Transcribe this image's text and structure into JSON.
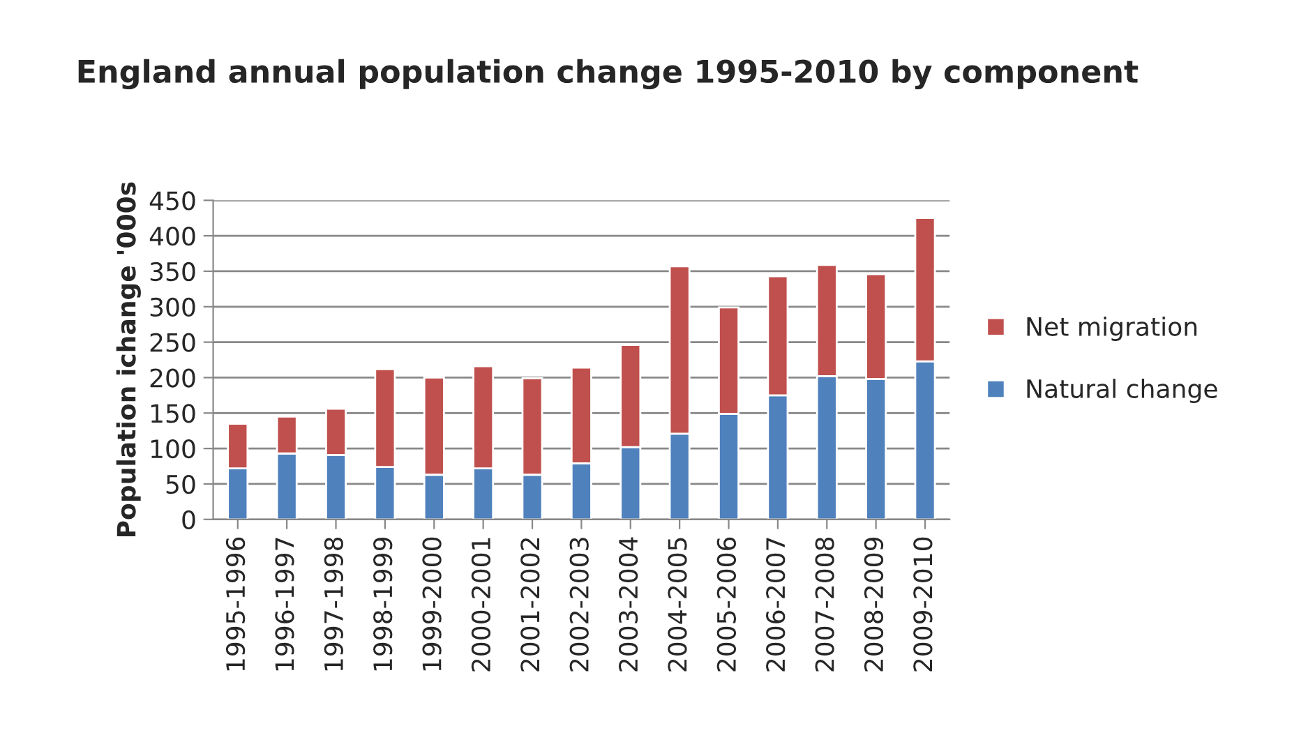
{
  "chart_data": {
    "type": "bar",
    "title": "England annual population change 1995-2010 by component",
    "ylabel": "Population ichange '000s",
    "categories": [
      "1995-1996",
      "1996-1997",
      "1997-1998",
      "1998-1999",
      "1999-2000",
      "2000-2001",
      "2001-2002",
      "2002-2003",
      "2003-2004",
      "2004-2005",
      "2005-2006",
      "2006-2007",
      "2007-2008",
      "2008-2009",
      "2009-2010"
    ],
    "series": [
      {
        "name": "Natural change",
        "color": "#4f81bd",
        "values": [
          72,
          93,
          91,
          74,
          63,
          72,
          63,
          79,
          102,
          121,
          149,
          175,
          202,
          198,
          223
        ]
      },
      {
        "name": "Net migration",
        "color": "#c0504d",
        "values": [
          63,
          52,
          65,
          138,
          137,
          144,
          136,
          135,
          144,
          236,
          150,
          168,
          157,
          148,
          202
        ]
      }
    ],
    "stacked": true,
    "ylim": [
      0,
      450
    ],
    "yticks": [
      0,
      50,
      100,
      150,
      200,
      250,
      300,
      350,
      400,
      450
    ],
    "grid": "y",
    "legend": "right"
  }
}
